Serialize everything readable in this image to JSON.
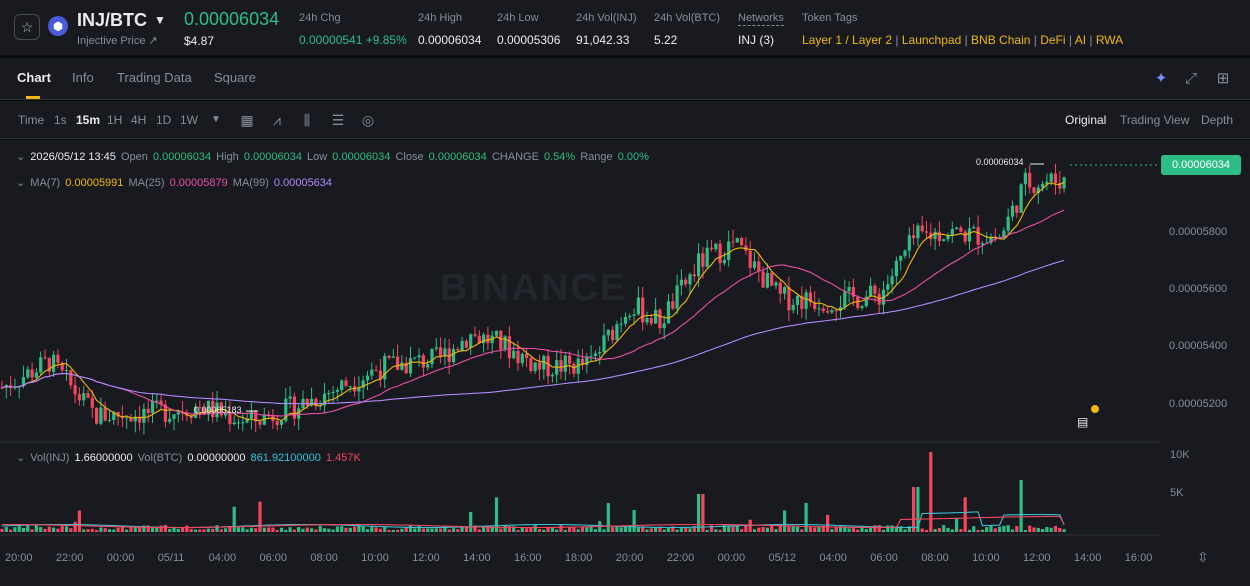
{
  "header": {
    "star_icon": "star-icon",
    "coin_logo": "inj-logo",
    "pair": "INJ/BTC",
    "coin_name": "Injective Price ↗",
    "last_price": "0.00006034",
    "usd_price": "$4.87",
    "stats": {
      "chg_label": "24h Chg",
      "chg_value": "0.00000541 +9.85%",
      "high_label": "24h High",
      "high_value": "0.00006034",
      "low_label": "24h Low",
      "low_value": "0.00005306",
      "vol_inj_label": "24h Vol(INJ)",
      "vol_inj_value": "91,042.33",
      "vol_btc_label": "24h Vol(BTC)",
      "vol_btc_value": "5.22",
      "networks_label": "Networks",
      "networks_value": "INJ (3)",
      "tags_label": "Token Tags",
      "tags": [
        "Layer 1 / Layer 2",
        "Launchpad",
        "BNB Chain",
        "DeFi",
        "AI",
        "RWA"
      ]
    }
  },
  "tabs": [
    "Chart",
    "Info",
    "Trading Data",
    "Square"
  ],
  "toolbar": {
    "timeframes": [
      "Time",
      "1s",
      "15m",
      "1H",
      "4H",
      "1D",
      "1W"
    ],
    "views": [
      "Original",
      "Trading View",
      "Depth"
    ]
  },
  "legend": {
    "datetime": "2026/05/12 13:45",
    "open_label": "Open",
    "open": "0.00006034",
    "high_label": "High",
    "high": "0.00006034",
    "low_label": "Low",
    "low": "0.00006034",
    "close_label": "Close",
    "close": "0.00006034",
    "change_label": "CHANGE",
    "change": "0.54%",
    "range_label": "Range",
    "range": "0.00%",
    "ma7_label": "MA(7)",
    "ma7": "0.00005991",
    "ma25_label": "MA(25)",
    "ma25": "0.00005879",
    "ma99_label": "MA(99)",
    "ma99": "0.00005634",
    "vol_inj_label": "Vol(INJ)",
    "vol_inj": "1.66000000",
    "vol_btc_label": "Vol(BTC)",
    "vol_btc": "0.00000000",
    "vol_ma1": "861.92100000",
    "vol_ma2": "1.457K"
  },
  "price_tag": "0.00006034",
  "watermark": "BINANCE",
  "chart_data": {
    "type": "candlestick",
    "y_ticks": [
      "0.00005800",
      "0.00005600",
      "0.00005400",
      "0.00005200"
    ],
    "ylim": [
      5.13e-05,
      6.09e-05
    ],
    "x_ticks": [
      "20:00",
      "22:00",
      "00:00",
      "05/11",
      "04:00",
      "06:00",
      "08:00",
      "10:00",
      "12:00",
      "14:00",
      "16:00",
      "18:00",
      "20:00",
      "22:00",
      "00:00",
      "05/12",
      "04:00",
      "06:00",
      "08:00",
      "10:00",
      "12:00",
      "14:00",
      "16:00"
    ],
    "high_marker": "0.00006034",
    "low_marker": "0.00005183",
    "vol_ticks": [
      "10K",
      "5K"
    ],
    "colors": {
      "up": "#2ebd85",
      "down": "#f6465d",
      "ma7": "#f0b90b",
      "ma25": "#e84fa6",
      "ma99": "#b388ff"
    }
  }
}
